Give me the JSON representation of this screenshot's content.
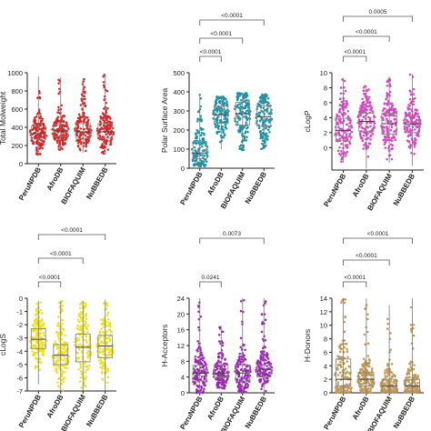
{
  "chart_data": [
    {
      "type": "scatter",
      "plot": "dot-and-box",
      "ylabel": "Total Molweight",
      "ylim": [
        0,
        1000
      ],
      "yticks": [
        0,
        200,
        400,
        600,
        800,
        1000
      ],
      "categories": [
        "PeruNPDB",
        "AfroDB",
        "BIOFAQUIM",
        "NuBBEDB"
      ],
      "color": "#e02020",
      "box": [
        {
          "q1": 270,
          "median": 330,
          "q3": 410,
          "min": 100,
          "max": 960
        },
        {
          "q1": 300,
          "median": 360,
          "q3": 430,
          "min": 150,
          "max": 950
        },
        {
          "q1": 280,
          "median": 350,
          "q3": 440,
          "min": 120,
          "max": 940
        },
        {
          "q1": 280,
          "median": 350,
          "q3": 440,
          "min": 100,
          "max": 990
        }
      ],
      "comparisons": []
    },
    {
      "type": "scatter",
      "plot": "dot-and-box",
      "ylabel": "Polar Surface Area",
      "ylim": [
        0,
        500
      ],
      "yticks": [
        0,
        100,
        200,
        300,
        400,
        500
      ],
      "categories": [
        "PeruNPDB",
        "AfroDB",
        "BIOFAQUIM",
        "NuBBEDB"
      ],
      "color": "#1a93a8",
      "box": [
        {
          "q1": 50,
          "median": 80,
          "q3": 140,
          "min": 10,
          "max": 385
        },
        {
          "q1": 235,
          "median": 280,
          "q3": 325,
          "min": 100,
          "max": 375
        },
        {
          "q1": 225,
          "median": 285,
          "q3": 345,
          "min": 90,
          "max": 395
        },
        {
          "q1": 220,
          "median": 270,
          "q3": 325,
          "min": 100,
          "max": 390
        }
      ],
      "comparisons": [
        {
          "from": 0,
          "to": 1,
          "label": "<0.0001"
        },
        {
          "from": 0,
          "to": 2,
          "label": "<0.0001"
        },
        {
          "from": 0,
          "to": 3,
          "label": "<0.0001"
        }
      ]
    },
    {
      "type": "scatter",
      "plot": "dot-and-box",
      "ylabel": "cLogP",
      "ylim": [
        -3,
        10
      ],
      "yticks": [
        0,
        2,
        4,
        6,
        8,
        10
      ],
      "categories": [
        "PeruNPDB",
        "AfroDB",
        "BIOFAQUIM",
        "NuBBEDB"
      ],
      "color": "#e040c8",
      "box": [
        {
          "q1": 1.0,
          "median": 2.3,
          "q3": 3.9,
          "min": -2.0,
          "max": 9.3
        },
        {
          "q1": 2.2,
          "median": 3.5,
          "q3": 4.6,
          "min": -2.8,
          "max": 8.3
        },
        {
          "q1": 1.8,
          "median": 3.2,
          "q3": 4.6,
          "min": -2.0,
          "max": 9.5
        },
        {
          "q1": 2.0,
          "median": 3.1,
          "q3": 4.2,
          "min": -2.4,
          "max": 9.8
        }
      ],
      "comparisons": [
        {
          "from": 0,
          "to": 1,
          "label": "<0.0001"
        },
        {
          "from": 0,
          "to": 2,
          "label": "<0.0001"
        },
        {
          "from": 0,
          "to": 3,
          "label": "0.0005"
        }
      ]
    },
    {
      "type": "scatter",
      "plot": "dot-and-box",
      "ylabel": "cLogS",
      "ylim": [
        -7,
        0
      ],
      "yticks": [
        -7,
        -6,
        -5,
        -4,
        -3,
        -2,
        -1,
        0
      ],
      "categories": [
        "PeruNPDB",
        "AfroDB",
        "BIOFAQUIM",
        "NuBBEDB"
      ],
      "color": "#f0e020",
      "box": [
        {
          "q1": -3.8,
          "median": -3.1,
          "q3": -2.3,
          "min": -6.5,
          "max": -0.2
        },
        {
          "q1": -5.0,
          "median": -4.3,
          "q3": -3.5,
          "min": -7.0,
          "max": -0.2
        },
        {
          "q1": -4.8,
          "median": -3.7,
          "q3": -2.7,
          "min": -7.0,
          "max": -0.2
        },
        {
          "q1": -4.5,
          "median": -3.6,
          "q3": -2.8,
          "min": -7.0,
          "max": -0.1
        }
      ],
      "comparisons": [
        {
          "from": 0,
          "to": 1,
          "label": "<0.0001"
        },
        {
          "from": 0,
          "to": 2,
          "label": "<0.0001"
        },
        {
          "from": 0,
          "to": 3,
          "label": "<0.0001"
        }
      ]
    },
    {
      "type": "scatter",
      "plot": "dot-and-box",
      "ylabel": "H-Acceptors",
      "ylim": [
        0,
        24
      ],
      "yticks": [
        0,
        4,
        8,
        12,
        16,
        20,
        24
      ],
      "categories": [
        "PeruNPDB",
        "AfroDB",
        "BIOFAQUIM",
        "NuBBEDB"
      ],
      "color": "#a020b8",
      "box": [
        {
          "q1": 3,
          "median": 5,
          "q3": 7,
          "min": 0,
          "max": 24
        },
        {
          "q1": 4,
          "median": 5,
          "q3": 7,
          "min": 1,
          "max": 17
        },
        {
          "q1": 3,
          "median": 5,
          "q3": 7,
          "min": 0,
          "max": 24
        },
        {
          "q1": 4,
          "median": 6,
          "q3": 7,
          "min": 0,
          "max": 24
        }
      ],
      "comparisons": [
        {
          "from": 0,
          "to": 1,
          "label": "0.0241"
        },
        {
          "from": 0,
          "to": 3,
          "label": "0.0073"
        }
      ]
    },
    {
      "type": "scatter",
      "plot": "dot-and-box",
      "ylabel": "H-Donors",
      "ylim": [
        0,
        14
      ],
      "yticks": [
        0,
        2,
        4,
        6,
        8,
        10,
        12,
        14
      ],
      "categories": [
        "PeruNPDB",
        "AfroDB",
        "BIOFAQUIM",
        "NuBBEDB"
      ],
      "color": "#c89850",
      "box": [
        {
          "q1": 1,
          "median": 2,
          "q3": 5,
          "min": 0,
          "max": 14
        },
        {
          "q1": 1,
          "median": 2,
          "q3": 3,
          "min": 0,
          "max": 14
        },
        {
          "q1": 0,
          "median": 1,
          "q3": 2,
          "min": 0,
          "max": 13
        },
        {
          "q1": 0,
          "median": 1,
          "q3": 2,
          "min": 0,
          "max": 14
        }
      ],
      "comparisons": [
        {
          "from": 0,
          "to": 1,
          "label": "<0.0001"
        },
        {
          "from": 0,
          "to": 2,
          "label": "<0.0001"
        },
        {
          "from": 0,
          "to": 3,
          "label": "<0.0001"
        }
      ]
    }
  ]
}
